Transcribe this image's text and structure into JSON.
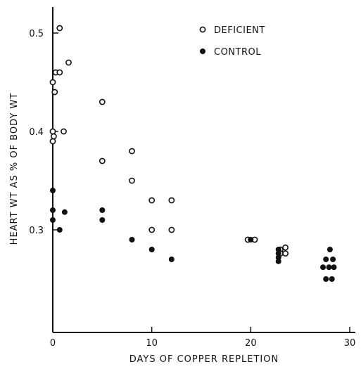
{
  "chart_data": {
    "type": "scatter",
    "xlabel": "DAYS OF COPPER REPLETION",
    "ylabel": "HEART WT AS % OF BODY WT",
    "xlim": [
      0,
      30
    ],
    "ylim": [
      0.2,
      0.52
    ],
    "x_ticks": [
      0,
      10,
      20,
      30
    ],
    "y_ticks": [
      0.3,
      0.4,
      0.5
    ],
    "grid": false,
    "legend_position": "top-right",
    "series": [
      {
        "name": "DEFICIENT",
        "marker": "open-circle",
        "color": "#111111",
        "points": [
          [
            0.0,
            0.45
          ],
          [
            0.7,
            0.505
          ],
          [
            0.3,
            0.46
          ],
          [
            0.7,
            0.46
          ],
          [
            1.6,
            0.47
          ],
          [
            0.2,
            0.44
          ],
          [
            0.0,
            0.4
          ],
          [
            1.1,
            0.4
          ],
          [
            0.1,
            0.395
          ],
          [
            0.0,
            0.39
          ],
          [
            5.0,
            0.43
          ],
          [
            5.0,
            0.37
          ],
          [
            8.0,
            0.38
          ],
          [
            8.0,
            0.35
          ],
          [
            10.0,
            0.33
          ],
          [
            12.0,
            0.33
          ],
          [
            10.0,
            0.3
          ],
          [
            12.0,
            0.3
          ],
          [
            19.7,
            0.29
          ],
          [
            20.4,
            0.29
          ],
          [
            23.0,
            0.28
          ],
          [
            23.5,
            0.282
          ],
          [
            23.0,
            0.276
          ],
          [
            23.5,
            0.276
          ]
        ]
      },
      {
        "name": "CONTROL",
        "marker": "filled-circle",
        "color": "#111111",
        "points": [
          [
            0.0,
            0.34
          ],
          [
            0.0,
            0.32
          ],
          [
            0.0,
            0.31
          ],
          [
            0.7,
            0.3
          ],
          [
            1.2,
            0.318
          ],
          [
            5.0,
            0.32
          ],
          [
            5.0,
            0.31
          ],
          [
            8.0,
            0.29
          ],
          [
            10.0,
            0.28
          ],
          [
            12.0,
            0.27
          ],
          [
            20.0,
            0.29
          ],
          [
            22.8,
            0.28
          ],
          [
            22.8,
            0.276
          ],
          [
            22.8,
            0.272
          ],
          [
            22.8,
            0.268
          ],
          [
            28.0,
            0.28
          ],
          [
            27.6,
            0.27
          ],
          [
            28.3,
            0.27
          ],
          [
            27.3,
            0.262
          ],
          [
            27.9,
            0.262
          ],
          [
            28.4,
            0.262
          ],
          [
            27.6,
            0.25
          ],
          [
            28.2,
            0.25
          ]
        ]
      }
    ]
  }
}
